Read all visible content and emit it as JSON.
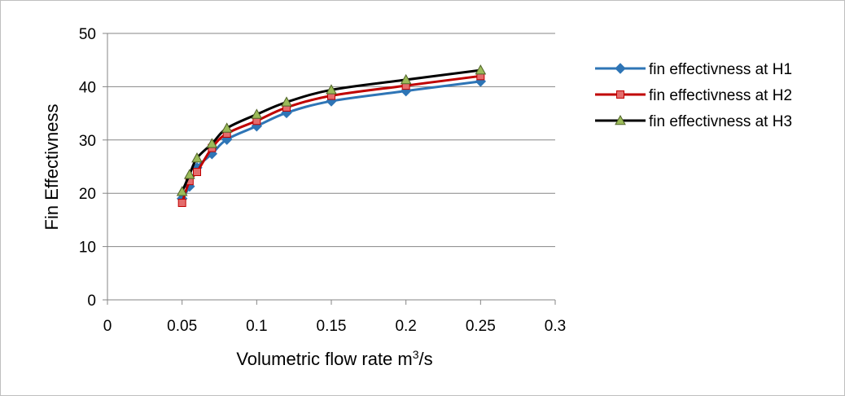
{
  "chart_data": {
    "type": "line",
    "title": "",
    "xlabel": "Volumetric flow rate m",
    "xlabel_superscript": "3",
    "xlabel_suffix": "/s",
    "ylabel": "Fin Effectivness",
    "xlim": [
      0,
      0.3
    ],
    "ylim": [
      0,
      50
    ],
    "x_ticks": [
      0,
      0.05,
      0.1,
      0.15,
      0.2,
      0.25,
      0.3
    ],
    "x_tick_labels": [
      "0",
      "0.05",
      "0.1",
      "0.15",
      "0.2",
      "0.25",
      "0.3"
    ],
    "y_ticks": [
      0,
      10,
      20,
      30,
      40,
      50
    ],
    "y_tick_labels": [
      "0",
      "10",
      "20",
      "30",
      "40",
      "50"
    ],
    "grid": "horizontal",
    "legend_position": "right",
    "x": [
      0.05,
      0.055,
      0.06,
      0.07,
      0.08,
      0.1,
      0.12,
      0.15,
      0.2,
      0.25
    ],
    "series": [
      {
        "name": "fin effectivness at H1",
        "color": "#2e75b6",
        "marker": "diamond",
        "values": [
          19.0,
          21.3,
          24.8,
          27.4,
          30.1,
          32.6,
          35.1,
          37.3,
          39.2,
          41.0
        ]
      },
      {
        "name": "fin effectivness at H2",
        "color": "#c00000",
        "marker": "square",
        "values": [
          18.2,
          22.3,
          24.0,
          28.5,
          31.2,
          33.6,
          36.1,
          38.3,
          40.2,
          42.0
        ]
      },
      {
        "name": "fin effectivness at H3",
        "color": "#000000",
        "marker_fill": "#9bbb59",
        "marker": "triangle",
        "values": [
          20.3,
          23.5,
          26.6,
          29.3,
          32.2,
          34.8,
          37.1,
          39.4,
          41.3,
          43.1
        ]
      }
    ]
  }
}
